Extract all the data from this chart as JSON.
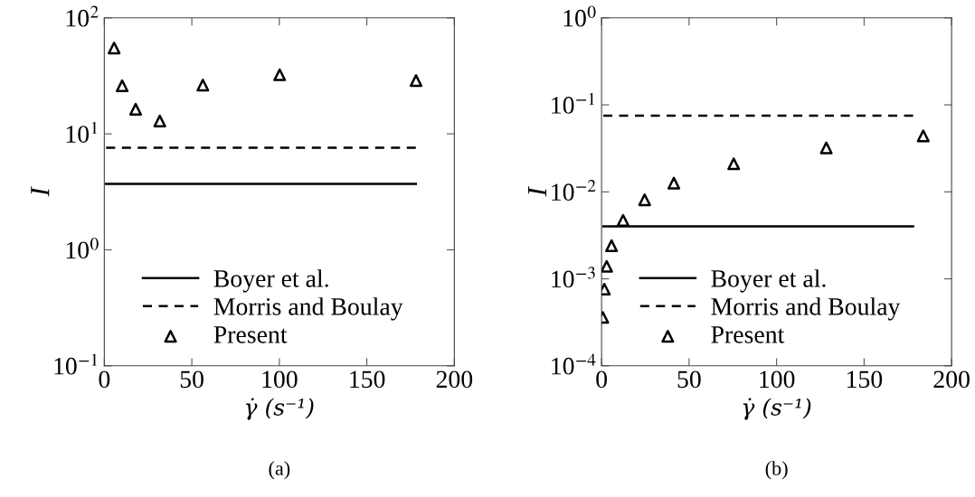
{
  "chart_data": [
    {
      "type": "scatter",
      "xlabel": "γ̇ (s⁻¹)",
      "ylabel": "I",
      "log": "y",
      "xlim": [
        0,
        200
      ],
      "xticks": [
        0,
        50,
        100,
        150,
        200
      ],
      "ylim": [
        0.1,
        100
      ],
      "yticks": [
        {
          "value": 0.1,
          "label": "10$^{−1}$"
        },
        {
          "value": 1,
          "label": "10$^{0}$"
        },
        {
          "value": 10,
          "label": "10$^{1}$"
        },
        {
          "value": 100,
          "label": "10$^{2}$"
        }
      ],
      "grid": false,
      "legend": "bottom left",
      "annotations": [
        "(a)"
      ],
      "series": [
        {
          "name": "Boyer et al.",
          "type": "line",
          "line_style": "solid",
          "marker": "none",
          "color": "#000000",
          "x": [
            1,
            178
          ],
          "values": [
            3.7,
            3.7
          ]
        },
        {
          "name": "Morris and Boulay",
          "type": "line",
          "line_style": "dashed",
          "marker": "none",
          "color": "#000000",
          "x": [
            1,
            178
          ],
          "values": [
            7.6,
            7.6
          ]
        },
        {
          "name": "Present",
          "marker": "triangle",
          "color": "#000000",
          "x": [
            5.6,
            10.2,
            17.9,
            31.7,
            56.3,
            100.2,
            178.1
          ],
          "values": [
            55,
            26,
            16.3,
            12.9,
            26.3,
            32.3,
            28.8
          ]
        }
      ]
    },
    {
      "type": "scatter",
      "xlabel": "γ̇ (s⁻¹)",
      "ylabel": "I",
      "log": "y",
      "xlim": [
        0,
        200
      ],
      "xticks": [
        0,
        50,
        100,
        150,
        200
      ],
      "ylim": [
        0.0001,
        1
      ],
      "yticks": [
        {
          "value": 0.0001,
          "label": "10$^{−4}$"
        },
        {
          "value": 0.001,
          "label": "10$^{−3}$"
        },
        {
          "value": 0.01,
          "label": "10$^{−2}$"
        },
        {
          "value": 0.1,
          "label": "10$^{−1}$"
        },
        {
          "value": 1,
          "label": "10$^{0}$"
        }
      ],
      "grid": false,
      "legend": "bottom left",
      "annotations": [
        "(b)"
      ],
      "series": [
        {
          "name": "Boyer et al.",
          "type": "line",
          "line_style": "solid",
          "marker": "none",
          "color": "#000000",
          "x": [
            1,
            178
          ],
          "values": [
            0.004,
            0.004
          ]
        },
        {
          "name": "Morris and Boulay",
          "type": "line",
          "line_style": "dashed",
          "marker": "none",
          "color": "#000000",
          "x": [
            1,
            178
          ],
          "values": [
            0.075,
            0.075
          ]
        },
        {
          "name": "Present",
          "marker": "triangle",
          "color": "#000000",
          "x": [
            0.7,
            1.6,
            2.9,
            5.7,
            12.3,
            24.6,
            41.3,
            75.5,
            128.4,
            183.8
          ],
          "values": [
            0.00036,
            0.00076,
            0.00139,
            0.0024,
            0.0047,
            0.0081,
            0.0126,
            0.021,
            0.032,
            0.044
          ]
        }
      ]
    }
  ]
}
